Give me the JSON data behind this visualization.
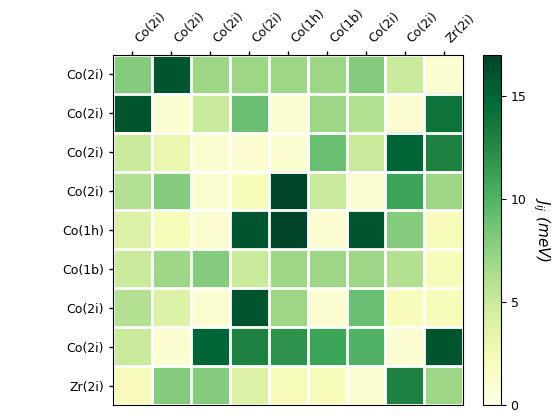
{
  "row_labels": [
    "Co(2i)",
    "Co(2i)",
    "Co(2i)",
    "Co(2i)",
    "Co(1h)",
    "Co(1b)",
    "Co(2i)",
    "Co(2i)",
    "Zr(2i)"
  ],
  "col_labels": [
    "Co(2i)",
    "Co(2i)",
    "Co(2i)",
    "Co(2i)",
    "Co(1h)",
    "Co(1b)",
    "Co(2i)",
    "Co(2i)",
    "Zr(2i)"
  ],
  "matrix": [
    [
      8,
      16,
      7,
      7,
      7,
      7,
      8,
      5,
      1
    ],
    [
      16,
      1,
      5,
      9,
      1,
      7,
      6,
      1,
      14
    ],
    [
      5,
      3,
      1,
      1,
      1,
      9,
      5,
      15,
      13
    ],
    [
      6,
      8,
      1,
      2,
      17,
      5,
      1,
      11,
      7
    ],
    [
      4,
      2,
      1,
      16,
      17,
      1,
      16,
      8,
      2
    ],
    [
      5,
      7,
      8,
      5,
      7,
      7,
      7,
      6,
      2
    ],
    [
      6,
      4,
      1,
      16,
      7,
      1,
      9,
      2,
      2
    ],
    [
      5,
      1,
      15,
      13,
      12,
      11,
      10,
      1,
      16
    ],
    [
      2,
      8,
      8,
      4,
      2,
      2,
      1,
      13,
      7
    ]
  ],
  "vmin": 0,
  "vmax": 17,
  "cmap": "YlGn",
  "colorbar_label": "$\\it{J}_{ij}$ (meV)",
  "colorbar_ticks": [
    0,
    5,
    10,
    15
  ],
  "figsize": [
    5.6,
    4.2
  ],
  "dpi": 100
}
